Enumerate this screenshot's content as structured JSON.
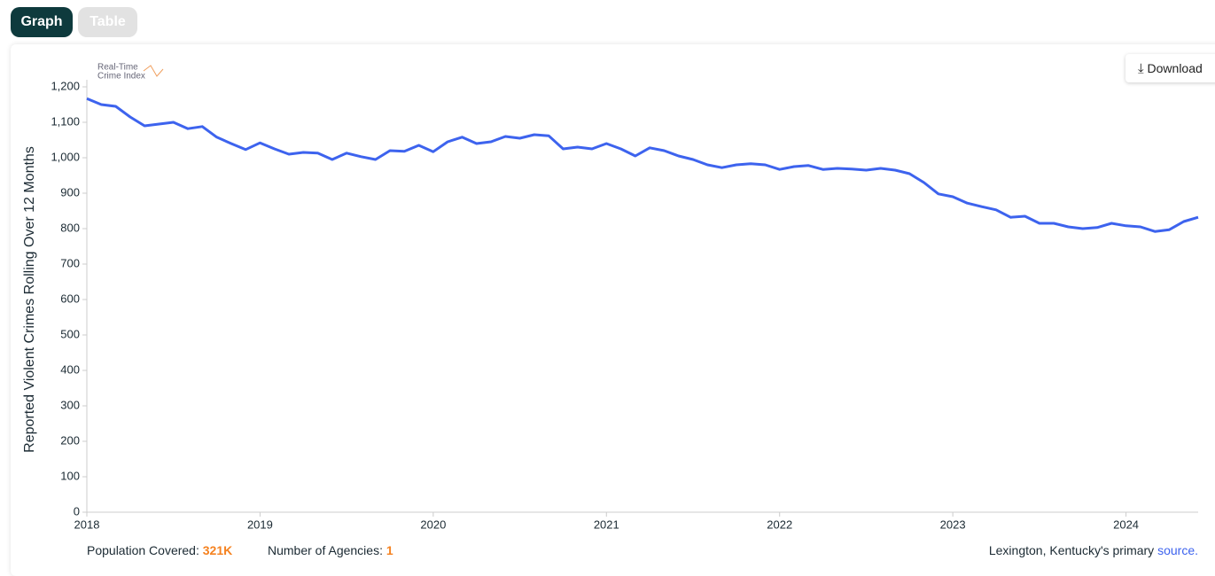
{
  "tabs": [
    "Graph",
    "Table"
  ],
  "download": "Download",
  "logo": [
    "Real-Time",
    "Crime Index"
  ],
  "chart_data": {
    "type": "line",
    "y_label": "Reported Violent Crimes Rolling Over 12 Months",
    "categories": [
      "2018",
      null,
      null,
      null,
      null,
      null,
      null,
      null,
      null,
      null,
      null,
      null,
      "2019",
      null,
      null,
      null,
      null,
      null,
      null,
      null,
      null,
      null,
      null,
      null,
      "2020",
      null,
      null,
      null,
      null,
      null,
      null,
      null,
      null,
      null,
      null,
      null,
      "2021",
      null,
      null,
      null,
      null,
      null,
      null,
      null,
      null,
      null,
      null,
      null,
      "2022",
      null,
      null,
      null,
      null,
      null,
      null,
      null,
      null,
      null,
      null,
      null,
      "2023",
      null,
      null,
      null,
      null,
      null,
      null,
      null,
      null,
      null,
      null,
      null,
      "2024",
      null,
      null,
      null,
      null,
      null
    ],
    "series": [
      {
        "name": "Lexington, Kentucky",
        "color": "#3d63ee",
        "values": [
          1167,
          1150,
          1145,
          1115,
          1090,
          1095,
          1100,
          1082,
          1088,
          1058,
          1040,
          1023,
          1042,
          1025,
          1010,
          1015,
          1013,
          995,
          1013,
          1003,
          995,
          1020,
          1018,
          1035,
          1017,
          1045,
          1058,
          1040,
          1045,
          1060,
          1055,
          1065,
          1062,
          1025,
          1030,
          1025,
          1040,
          1025,
          1005,
          1028,
          1020,
          1005,
          995,
          980,
          972,
          980,
          983,
          980,
          967,
          975,
          978,
          967,
          970,
          968,
          965,
          970,
          965,
          955,
          930,
          898,
          890,
          872,
          862,
          853,
          832,
          835,
          815,
          815,
          805,
          800,
          803,
          815,
          808,
          805,
          792,
          797,
          820,
          832
        ]
      }
    ],
    "ylim": [
      0,
      1200
    ],
    "yticks": [
      0,
      100,
      200,
      300,
      400,
      500,
      600,
      700,
      800,
      900,
      {
        "value": 1000,
        "label": "1,000"
      },
      {
        "value": 1100,
        "label": "1,100"
      },
      {
        "value": 1200,
        "label": "1,200"
      }
    ],
    "grid": false
  },
  "footer": {
    "population_label": "Population Covered:",
    "population": "321K",
    "agencies_label": "Number of Agencies:",
    "agencies": "1",
    "source_text": "Lexington, Kentucky's primary",
    "source_link": "source."
  }
}
